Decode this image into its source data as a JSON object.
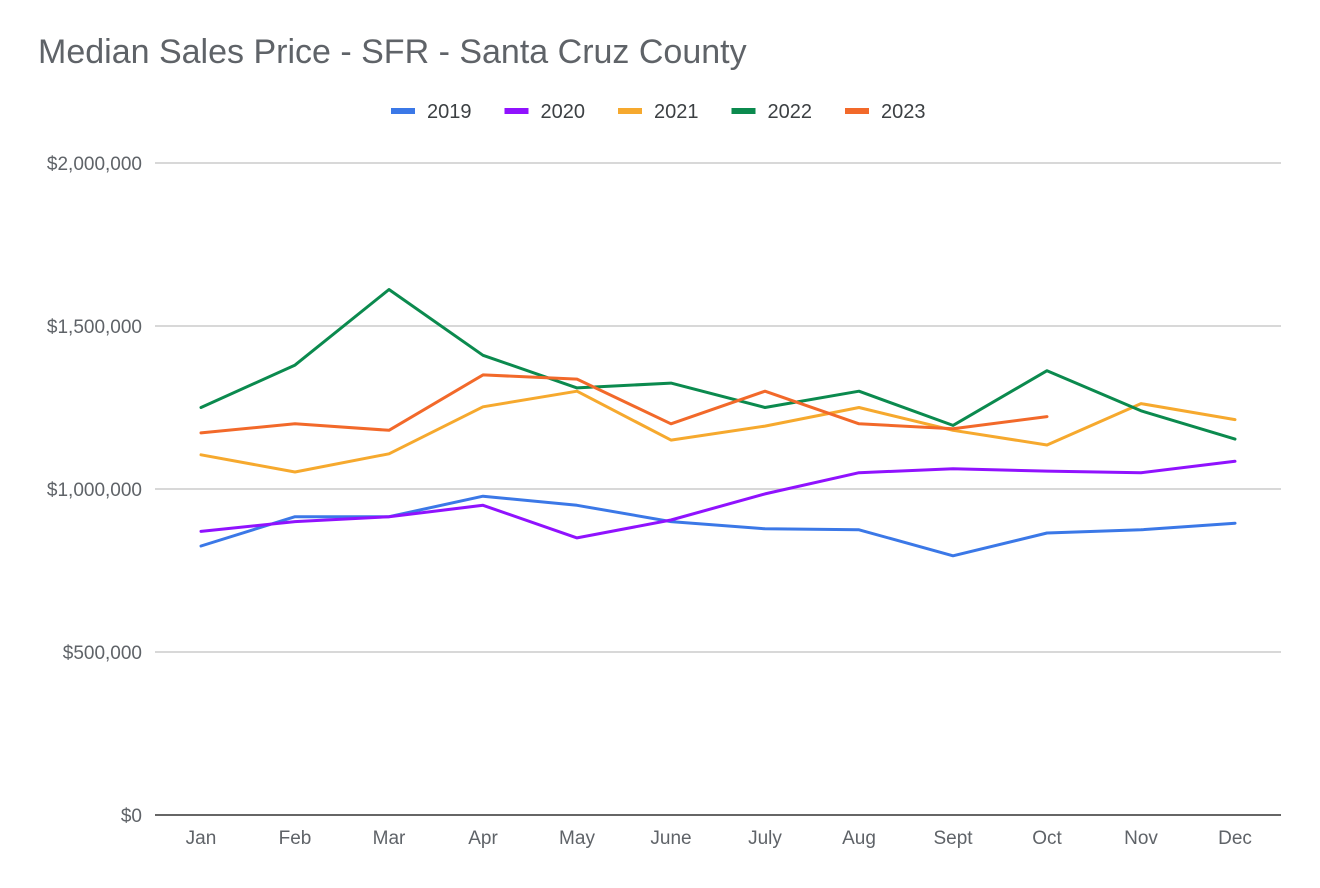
{
  "chart_data": {
    "type": "line",
    "title": "Median Sales Price - SFR - Santa Cruz County",
    "xlabel": "",
    "ylabel": "",
    "categories": [
      "Jan",
      "Feb",
      "Mar",
      "Apr",
      "May",
      "June",
      "July",
      "Aug",
      "Sept",
      "Oct",
      "Nov",
      "Dec"
    ],
    "ylim": [
      0,
      2000000
    ],
    "yticks": [
      0,
      500000,
      1000000,
      1500000,
      2000000
    ],
    "ytick_labels": [
      "$0",
      "$500,000",
      "$1,000,000",
      "$1,500,000",
      "$2,000,000"
    ],
    "grid": true,
    "legend_position": "top",
    "series": [
      {
        "name": "2019",
        "color": "#3b78e7",
        "values": [
          825000,
          915000,
          915000,
          978000,
          950000,
          900000,
          878000,
          875000,
          795000,
          865000,
          875000,
          895000
        ]
      },
      {
        "name": "2020",
        "color": "#9012fe",
        "values": [
          870000,
          900000,
          915000,
          950000,
          850000,
          905000,
          985000,
          1050000,
          1062000,
          1055000,
          1050000,
          1085000
        ]
      },
      {
        "name": "2021",
        "color": "#f6a92e",
        "values": [
          1105000,
          1052000,
          1108000,
          1252000,
          1300000,
          1150000,
          1193000,
          1250000,
          1180000,
          1135000,
          1262000,
          1213000
        ]
      },
      {
        "name": "2022",
        "color": "#0b8a4e",
        "values": [
          1250000,
          1380000,
          1612000,
          1410000,
          1310000,
          1325000,
          1250000,
          1300000,
          1195000,
          1363000,
          1240000,
          1153000
        ]
      },
      {
        "name": "2023",
        "color": "#f2692a",
        "values": [
          1172000,
          1200000,
          1180000,
          1350000,
          1337000,
          1200000,
          1300000,
          1200000,
          1185000,
          1222000,
          null,
          null
        ]
      }
    ]
  }
}
